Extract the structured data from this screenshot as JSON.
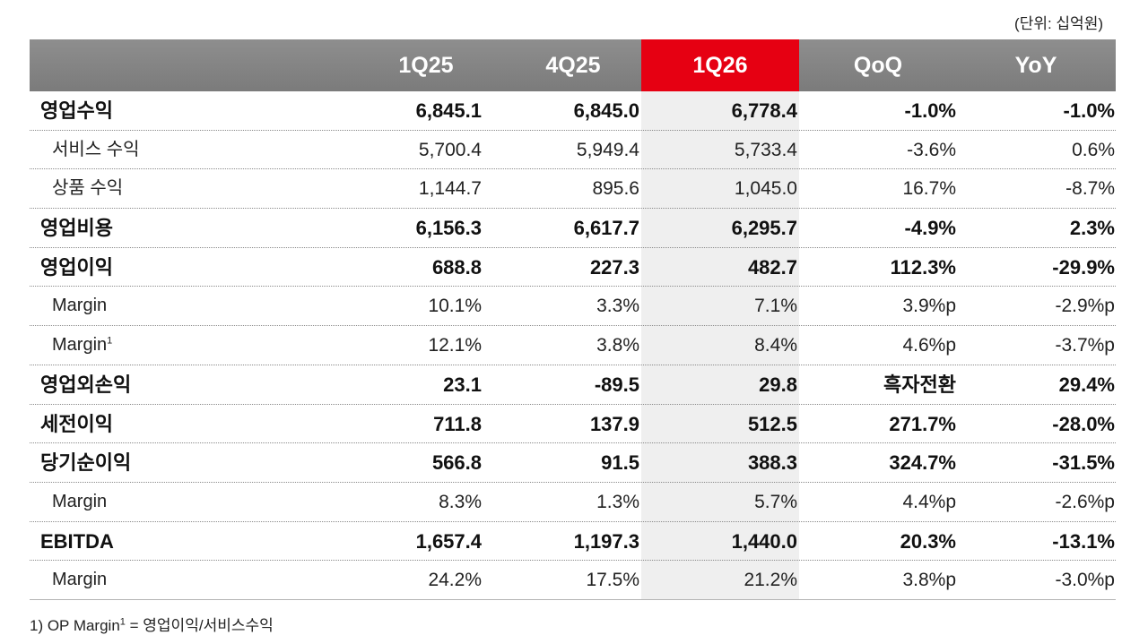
{
  "unit_note": "(단위: 십억원)",
  "header": [
    "",
    "1Q25",
    "4Q25",
    "1Q26",
    "QoQ",
    "YoY"
  ],
  "rows": [
    {
      "label": "영업수익",
      "sup": "",
      "style": "bold",
      "values": [
        "6,845.1",
        "6,845.0",
        "6,778.4",
        "-1.0%",
        "-1.0%"
      ]
    },
    {
      "label": "서비스 수익",
      "sup": "",
      "style": "sub",
      "values": [
        "5,700.4",
        "5,949.4",
        "5,733.4",
        "-3.6%",
        "0.6%"
      ]
    },
    {
      "label": "상품 수익",
      "sup": "",
      "style": "sub",
      "values": [
        "1,144.7",
        "895.6",
        "1,045.0",
        "16.7%",
        "-8.7%"
      ]
    },
    {
      "label": "영업비용",
      "sup": "",
      "style": "bold",
      "values": [
        "6,156.3",
        "6,617.7",
        "6,295.7",
        "-4.9%",
        "2.3%"
      ]
    },
    {
      "label": "영업이익",
      "sup": "",
      "style": "bold",
      "values": [
        "688.8",
        "227.3",
        "482.7",
        "112.3%",
        "-29.9%"
      ]
    },
    {
      "label": "Margin",
      "sup": "",
      "style": "sub",
      "values": [
        "10.1%",
        "3.3%",
        "7.1%",
        "3.9%p",
        "-2.9%p"
      ]
    },
    {
      "label": "Margin",
      "sup": "1",
      "style": "sub",
      "values": [
        "12.1%",
        "3.8%",
        "8.4%",
        "4.6%p",
        "-3.7%p"
      ]
    },
    {
      "label": "영업외손익",
      "sup": "",
      "style": "bold",
      "values": [
        "23.1",
        "-89.5",
        "29.8",
        "흑자전환",
        "29.4%"
      ]
    },
    {
      "label": "세전이익",
      "sup": "",
      "style": "bold",
      "values": [
        "711.8",
        "137.9",
        "512.5",
        "271.7%",
        "-28.0%"
      ]
    },
    {
      "label": "당기순이익",
      "sup": "",
      "style": "bold",
      "values": [
        "566.8",
        "91.5",
        "388.3",
        "324.7%",
        "-31.5%"
      ]
    },
    {
      "label": "Margin",
      "sup": "",
      "style": "sub",
      "values": [
        "8.3%",
        "1.3%",
        "5.7%",
        "4.4%p",
        "-2.6%p"
      ]
    },
    {
      "label": "EBITDA",
      "sup": "",
      "style": "bold",
      "values": [
        "1,657.4",
        "1,197.3",
        "1,440.0",
        "20.3%",
        "-13.1%"
      ]
    },
    {
      "label": "Margin",
      "sup": "",
      "style": "sub",
      "values": [
        "24.2%",
        "17.5%",
        "21.2%",
        "3.8%p",
        "-3.0%p"
      ]
    }
  ],
  "footnote": {
    "prefix": "1) OP Margin",
    "sup": "1",
    "suffix": " = 영업이익/서비스수익"
  },
  "colors": {
    "header_bg": "#808080",
    "highlight": "#e60012",
    "highlight_column_bg": "#efefef"
  }
}
